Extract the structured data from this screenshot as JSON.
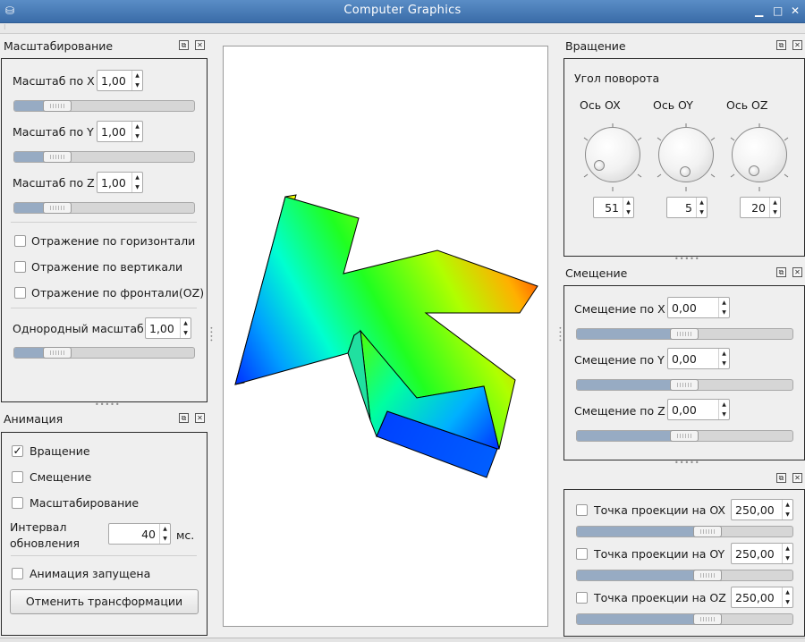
{
  "window": {
    "title": "Computer Graphics",
    "menu_icon": "⛁",
    "min": "▁",
    "max": "□",
    "close": "✕"
  },
  "scale": {
    "title": "Масштабирование",
    "x": {
      "label": "Масштаб по X",
      "value": "1,00",
      "slider": 0.17
    },
    "y": {
      "label": "Масштаб по Y",
      "value": "1,00",
      "slider": 0.17
    },
    "z": {
      "label": "Масштаб по Z",
      "value": "1,00",
      "slider": 0.17
    },
    "mirror_h": "Отражение по горизонтали",
    "mirror_v": "Отражение по вертикали",
    "mirror_f": "Отражение по фронтали(OZ)",
    "uniform": {
      "label": "Однородный масштаб",
      "value": "1,00",
      "slider": 0.17
    }
  },
  "animation": {
    "title": "Анимация",
    "rotation": {
      "label": "Вращение",
      "checked": true
    },
    "translation": {
      "label": "Смещение",
      "checked": false
    },
    "scaling": {
      "label": "Масштабирование",
      "checked": false
    },
    "interval_l1": "Интервал",
    "interval_l2": "обновления",
    "interval_value": "40",
    "unit": "мс.",
    "running": "Анимация запущена",
    "reset": "Отменить трансформации"
  },
  "rotation": {
    "title": "Вращение",
    "group": "Угол поворота",
    "ox": {
      "label": "Ось OX",
      "value": "51"
    },
    "oy": {
      "label": "Ось OY",
      "value": "5"
    },
    "oz": {
      "label": "Ось OZ",
      "value": "20"
    }
  },
  "translation": {
    "title": "Смещение",
    "x": {
      "label": "Смещение по X",
      "value": "0,00",
      "slider": 0.5
    },
    "y": {
      "label": "Смещение по Y",
      "value": "0,00",
      "slider": 0.5
    },
    "z": {
      "label": "Смещение по Z",
      "value": "0,00",
      "slider": 0.5
    }
  },
  "projection": {
    "ox": {
      "label": "Точка проекции на OX",
      "value": "250,00",
      "slider": 0.6
    },
    "oy": {
      "label": "Точка проекции на OY",
      "value": "250,00",
      "slider": 0.6
    },
    "oz": {
      "label": "Точка проекции на OZ",
      "value": "250,00",
      "slider": 0.6
    }
  },
  "icons": {
    "float": "⧉",
    "close": "✕",
    "check": "✓",
    "spin": "▲▼"
  }
}
